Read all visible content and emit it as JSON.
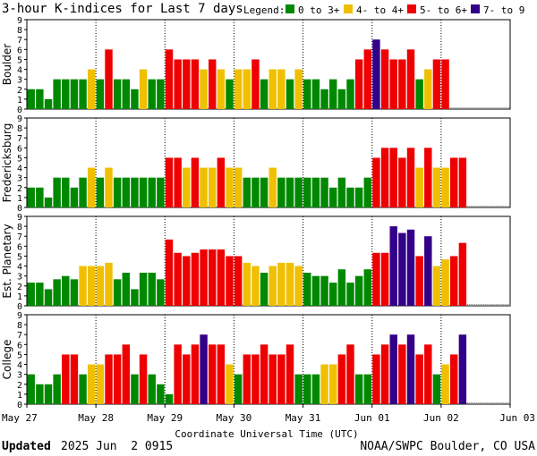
{
  "chart_data": {
    "type": "bar",
    "title": "3-hour K-indices for Last 7 days",
    "legend": {
      "label": "Legend:",
      "entries": [
        {
          "label": "0 to 3+",
          "color": "#008800"
        },
        {
          "label": "4- to 4+",
          "color": "#f0c000"
        },
        {
          "label": "5- to 6+",
          "color": "#ee0000"
        },
        {
          "label": "7- to 9",
          "color": "#330088"
        }
      ]
    },
    "xlabel": "Coordinate Universal Time (UTC)",
    "x_ticks": [
      "May 27",
      "May 28",
      "May 29",
      "May 30",
      "May 31",
      "Jun 01",
      "Jun 02",
      "Jun 03"
    ],
    "ylim": [
      0,
      9
    ],
    "y_ticks": [
      "0",
      "1",
      "2",
      "3",
      "4",
      "5",
      "6",
      "7",
      "8",
      "9"
    ],
    "bins_per_day": 8,
    "panels": [
      {
        "name": "Boulder",
        "values": [
          2,
          2,
          1,
          3,
          3,
          3,
          3,
          4,
          3,
          6,
          3,
          3,
          2,
          4,
          3,
          3,
          6,
          5,
          5,
          5,
          4,
          5,
          4,
          3,
          4,
          4,
          5,
          3,
          4,
          4,
          3,
          4,
          3,
          3,
          2,
          3,
          2,
          3,
          5,
          6,
          7,
          6,
          5,
          5,
          6,
          3,
          4,
          5,
          5
        ]
      },
      {
        "name": "Fredericksburg",
        "values": [
          2,
          2,
          1,
          3,
          3,
          2,
          3,
          4,
          3,
          4,
          3,
          3,
          3,
          3,
          3,
          3,
          5,
          5,
          4,
          5,
          4,
          4,
          5,
          4,
          4,
          3,
          3,
          3,
          4,
          3,
          3,
          3,
          3,
          3,
          3,
          2,
          3,
          2,
          2,
          3,
          5,
          6,
          6,
          5,
          6,
          4,
          6,
          4,
          4,
          5,
          5
        ]
      },
      {
        "name": "Est. Planetary",
        "values": [
          2.33,
          2.33,
          1.67,
          2.67,
          3,
          2.67,
          4,
          4,
          4,
          4.33,
          2.67,
          3.33,
          1.67,
          3.33,
          3.33,
          2.67,
          6.67,
          5.33,
          5,
          5.33,
          5.67,
          5.67,
          5.67,
          5,
          5,
          4.33,
          4,
          3.33,
          4,
          4.33,
          4.33,
          4,
          3.33,
          3,
          3,
          2.33,
          3.67,
          2.33,
          3,
          3.67,
          5.33,
          5.33,
          8,
          7.33,
          7.67,
          5,
          7,
          4,
          4.67,
          5,
          6.33
        ]
      },
      {
        "name": "College",
        "values": [
          3,
          2,
          2,
          3,
          5,
          5,
          3,
          4,
          4,
          5,
          5,
          6,
          3,
          5,
          3,
          2,
          1,
          6,
          5,
          6,
          7,
          6,
          6,
          4,
          3,
          5,
          5,
          6,
          5,
          5,
          6,
          3,
          3,
          3,
          4,
          4,
          5,
          6,
          3,
          3,
          5,
          6,
          7,
          6,
          7,
          5,
          6,
          3,
          4,
          5,
          7
        ]
      }
    ]
  },
  "footer": {
    "updated_label": "Updated",
    "updated_value": "2025 Jun  2 0915",
    "source": "NOAA/SWPC Boulder, CO USA"
  }
}
